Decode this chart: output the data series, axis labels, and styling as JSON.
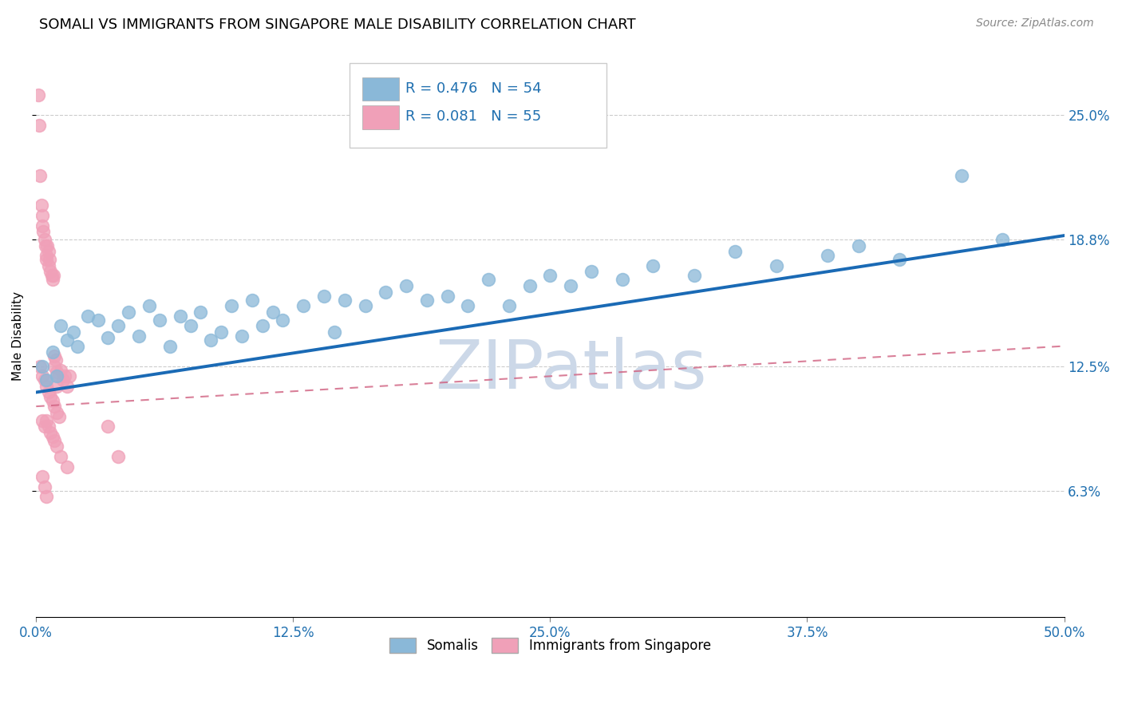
{
  "title": "SOMALI VS IMMIGRANTS FROM SINGAPORE MALE DISABILITY CORRELATION CHART",
  "source": "Source: ZipAtlas.com",
  "ylabel": "Male Disability",
  "xlim": [
    0.0,
    50.0
  ],
  "ylim": [
    0.0,
    28.0
  ],
  "yticks": [
    6.3,
    12.5,
    18.8,
    25.0
  ],
  "xticks": [
    0.0,
    12.5,
    25.0,
    37.5,
    50.0
  ],
  "legend_labels": [
    "Somalis",
    "Immigrants from Singapore"
  ],
  "somali_R": 0.476,
  "somali_N": 54,
  "singapore_R": 0.081,
  "singapore_N": 55,
  "somali_color": "#8ab8d8",
  "singapore_color": "#f0a0b8",
  "somali_line_color": "#1a6ab5",
  "singapore_line_color": "#d06080",
  "watermark": "ZIPatlas",
  "watermark_color": "#ccd8e8",
  "somali_x": [
    0.3,
    0.5,
    0.8,
    1.0,
    1.2,
    1.5,
    1.8,
    2.0,
    2.5,
    3.0,
    3.5,
    4.0,
    4.5,
    5.0,
    5.5,
    6.0,
    6.5,
    7.0,
    7.5,
    8.0,
    8.5,
    9.0,
    9.5,
    10.0,
    10.5,
    11.0,
    11.5,
    12.0,
    13.0,
    14.0,
    14.5,
    15.0,
    16.0,
    17.0,
    18.0,
    19.0,
    20.0,
    21.0,
    22.0,
    23.0,
    24.0,
    25.0,
    26.0,
    27.0,
    28.5,
    30.0,
    32.0,
    34.0,
    36.0,
    38.5,
    40.0,
    42.0,
    45.0,
    47.0
  ],
  "somali_y": [
    12.5,
    11.8,
    13.2,
    12.0,
    14.5,
    13.8,
    14.2,
    13.5,
    15.0,
    14.8,
    13.9,
    14.5,
    15.2,
    14.0,
    15.5,
    14.8,
    13.5,
    15.0,
    14.5,
    15.2,
    13.8,
    14.2,
    15.5,
    14.0,
    15.8,
    14.5,
    15.2,
    14.8,
    15.5,
    16.0,
    14.2,
    15.8,
    15.5,
    16.2,
    16.5,
    15.8,
    16.0,
    15.5,
    16.8,
    15.5,
    16.5,
    17.0,
    16.5,
    17.2,
    16.8,
    17.5,
    17.0,
    18.2,
    17.5,
    18.0,
    18.5,
    17.8,
    22.0,
    18.8
  ],
  "singapore_x": [
    0.1,
    0.15,
    0.2,
    0.25,
    0.3,
    0.3,
    0.35,
    0.4,
    0.45,
    0.5,
    0.5,
    0.55,
    0.6,
    0.6,
    0.65,
    0.7,
    0.75,
    0.8,
    0.85,
    0.9,
    0.9,
    0.95,
    1.0,
    1.0,
    1.1,
    1.2,
    1.3,
    1.4,
    1.5,
    1.6,
    0.2,
    0.3,
    0.4,
    0.5,
    0.6,
    0.7,
    0.8,
    0.9,
    1.0,
    1.1,
    0.3,
    0.4,
    0.5,
    0.6,
    0.7,
    0.8,
    0.9,
    1.0,
    1.2,
    1.5,
    0.3,
    0.4,
    0.5,
    3.5,
    4.0
  ],
  "singapore_y": [
    26.0,
    24.5,
    22.0,
    20.5,
    20.0,
    19.5,
    19.2,
    18.8,
    18.5,
    18.0,
    17.8,
    18.5,
    18.2,
    17.5,
    17.8,
    17.2,
    17.0,
    16.8,
    17.0,
    12.5,
    13.0,
    12.8,
    12.2,
    11.5,
    12.0,
    12.3,
    11.8,
    12.0,
    11.5,
    12.0,
    12.5,
    12.0,
    11.8,
    11.5,
    11.2,
    11.0,
    10.8,
    10.5,
    10.2,
    10.0,
    9.8,
    9.5,
    9.8,
    9.5,
    9.2,
    9.0,
    8.8,
    8.5,
    8.0,
    7.5,
    7.0,
    6.5,
    6.0,
    9.5,
    8.0
  ],
  "somali_line_y0": 11.2,
  "somali_line_y1": 19.0,
  "singapore_line_y0": 10.5,
  "singapore_line_y1": 13.5
}
